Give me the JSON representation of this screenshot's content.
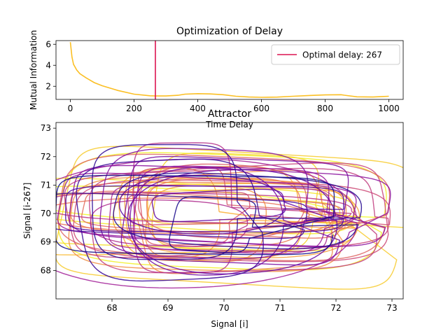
{
  "chart_data": [
    {
      "type": "line",
      "title": "Optimization of Delay",
      "xlabel": "Time Delay",
      "ylabel": "Mutual Information",
      "xlim": [
        -45,
        1045
      ],
      "ylim": [
        0.75,
        6.35
      ],
      "xticks": [
        0,
        200,
        400,
        600,
        800,
        1000
      ],
      "yticks": [
        2,
        4,
        6
      ],
      "grid": false,
      "legend": {
        "placement": "top-right",
        "entries": [
          "Optimal delay: 267"
        ]
      },
      "series": [
        {
          "color": "#fbbf24",
          "x": [
            0,
            5,
            10,
            20,
            30,
            50,
            75,
            100,
            150,
            200,
            250,
            267,
            300,
            340,
            360,
            400,
            440,
            480,
            520,
            560,
            600,
            650,
            700,
            750,
            800,
            850,
            860,
            900,
            950,
            980,
            1000
          ],
          "y": [
            6.2,
            4.8,
            4.1,
            3.55,
            3.2,
            2.8,
            2.35,
            2.05,
            1.6,
            1.25,
            1.1,
            1.08,
            1.08,
            1.15,
            1.25,
            1.3,
            1.27,
            1.2,
            1.05,
            0.98,
            0.95,
            0.97,
            1.05,
            1.12,
            1.18,
            1.2,
            1.15,
            1.0,
            0.98,
            1.02,
            1.05
          ]
        }
      ],
      "vline": {
        "x": 267,
        "color": "#dc1450",
        "label": "Optimal delay: 267"
      }
    },
    {
      "type": "line",
      "title": "Attractor",
      "xlabel": "Signal [i]",
      "ylabel": "Signal [i-267]",
      "xlim": [
        67.0,
        73.2
      ],
      "ylim": [
        67.0,
        73.2
      ],
      "xticks": [
        68,
        69,
        70,
        71,
        72,
        73
      ],
      "yticks": [
        68,
        69,
        70,
        71,
        72,
        73
      ],
      "grid": false,
      "colormap": [
        "#0d0887",
        "#5b02a3",
        "#9a179b",
        "#cb4678",
        "#eb7852",
        "#fbb32f",
        "#f0f921"
      ]
    }
  ]
}
